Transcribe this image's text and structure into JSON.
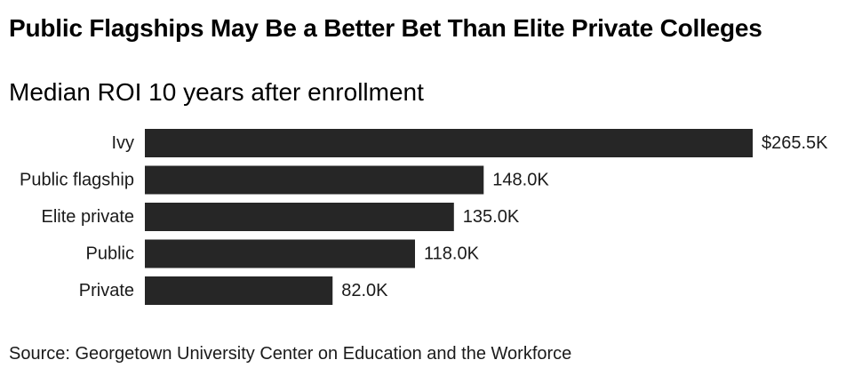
{
  "title": "Public Flagships May Be a Better Bet Than Elite Private Colleges",
  "subtitle": "Median ROI 10 years after enrollment",
  "source": "Source: Georgetown University Center on Education and the Workforce",
  "colors": {
    "bar": "#262626",
    "text": "#1a1a1a"
  },
  "chart_data": {
    "type": "bar",
    "orientation": "horizontal",
    "categories": [
      "Ivy",
      "Public flagship",
      "Elite private",
      "Public",
      "Private"
    ],
    "values": [
      265.5,
      148.0,
      135.0,
      118.0,
      82.0
    ],
    "value_labels": [
      "$265.5K",
      "148.0K",
      "135.0K",
      "118.0K",
      "82.0K"
    ],
    "unit": "K",
    "xlim": [
      0,
      265.5
    ],
    "grid": false,
    "legend": "none"
  }
}
